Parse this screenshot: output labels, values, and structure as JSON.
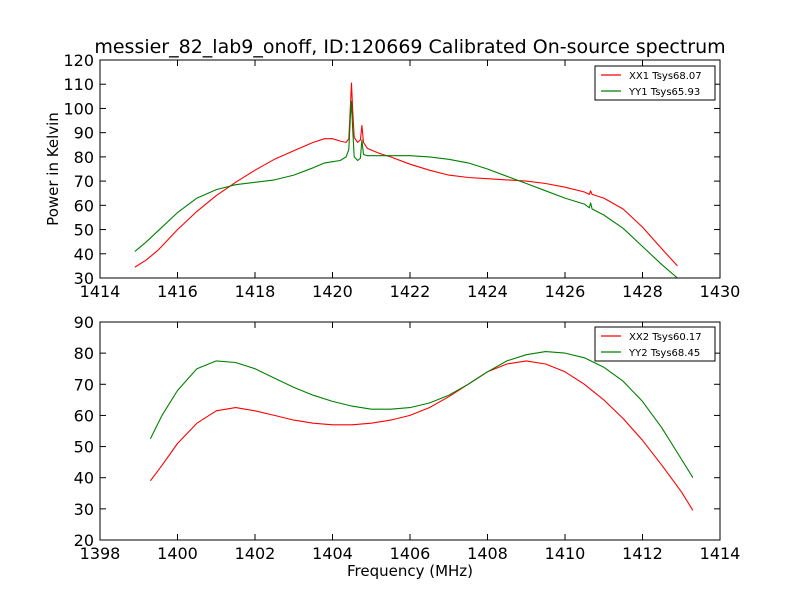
{
  "title": "messier_82_lab9_onoff, ID:120669 Calibrated On-source spectrum",
  "chart_data": [
    {
      "type": "line",
      "ylabel": "Power in Kelvin",
      "xlabel": "",
      "xlim": [
        1414,
        1430
      ],
      "ylim": [
        30,
        120
      ],
      "xticks": [
        1414,
        1416,
        1418,
        1420,
        1422,
        1424,
        1426,
        1428,
        1430
      ],
      "yticks": [
        30,
        40,
        50,
        60,
        70,
        80,
        90,
        100,
        110,
        120
      ],
      "legend_position": "top-right",
      "series": [
        {
          "name": "XX1 Tsys68.07",
          "color": "#ff0000",
          "points": [
            [
              1414.9,
              34.5
            ],
            [
              1415.2,
              37.5
            ],
            [
              1415.5,
              41.5
            ],
            [
              1416.0,
              50.0
            ],
            [
              1416.5,
              57.5
            ],
            [
              1417.0,
              64.0
            ],
            [
              1417.5,
              69.5
            ],
            [
              1418.0,
              74.5
            ],
            [
              1418.5,
              79.0
            ],
            [
              1419.0,
              82.5
            ],
            [
              1419.5,
              86.0
            ],
            [
              1419.8,
              87.5
            ],
            [
              1420.0,
              87.5
            ],
            [
              1420.2,
              86.5
            ],
            [
              1420.35,
              86.0
            ],
            [
              1420.42,
              87.5
            ],
            [
              1420.46,
              100.0
            ],
            [
              1420.49,
              110.5
            ],
            [
              1420.52,
              100.0
            ],
            [
              1420.56,
              88.0
            ],
            [
              1420.65,
              86.0
            ],
            [
              1420.72,
              87.0
            ],
            [
              1420.76,
              93.0
            ],
            [
              1420.8,
              86.0
            ],
            [
              1420.9,
              83.5
            ],
            [
              1421.2,
              81.5
            ],
            [
              1421.5,
              80.0
            ],
            [
              1422.0,
              77.0
            ],
            [
              1422.5,
              74.5
            ],
            [
              1423.0,
              72.5
            ],
            [
              1423.5,
              71.5
            ],
            [
              1424.0,
              71.0
            ],
            [
              1424.5,
              70.5
            ],
            [
              1425.0,
              70.0
            ],
            [
              1425.5,
              69.0
            ],
            [
              1426.0,
              67.5
            ],
            [
              1426.5,
              65.5
            ],
            [
              1426.63,
              64.5
            ],
            [
              1426.66,
              66.0
            ],
            [
              1426.7,
              64.5
            ],
            [
              1427.0,
              63.0
            ],
            [
              1427.5,
              58.5
            ],
            [
              1428.0,
              51.0
            ],
            [
              1428.5,
              42.0
            ],
            [
              1428.9,
              35.0
            ]
          ]
        },
        {
          "name": "YY1 Tsys65.93",
          "color": "#008000",
          "points": [
            [
              1414.9,
              41.0
            ],
            [
              1415.2,
              45.0
            ],
            [
              1415.5,
              49.5
            ],
            [
              1416.0,
              57.0
            ],
            [
              1416.5,
              63.0
            ],
            [
              1417.0,
              66.5
            ],
            [
              1417.5,
              68.5
            ],
            [
              1418.0,
              69.5
            ],
            [
              1418.5,
              70.5
            ],
            [
              1419.0,
              72.5
            ],
            [
              1419.5,
              75.5
            ],
            [
              1419.8,
              77.5
            ],
            [
              1420.0,
              78.0
            ],
            [
              1420.2,
              78.5
            ],
            [
              1420.35,
              80.0
            ],
            [
              1420.42,
              83.0
            ],
            [
              1420.46,
              96.0
            ],
            [
              1420.49,
              103.0
            ],
            [
              1420.52,
              92.0
            ],
            [
              1420.56,
              80.0
            ],
            [
              1420.65,
              78.5
            ],
            [
              1420.72,
              79.5
            ],
            [
              1420.76,
              87.0
            ],
            [
              1420.8,
              81.0
            ],
            [
              1420.9,
              80.5
            ],
            [
              1421.2,
              80.5
            ],
            [
              1421.5,
              80.5
            ],
            [
              1422.0,
              80.5
            ],
            [
              1422.5,
              80.0
            ],
            [
              1423.0,
              79.0
            ],
            [
              1423.5,
              77.5
            ],
            [
              1424.0,
              75.0
            ],
            [
              1424.5,
              72.0
            ],
            [
              1425.0,
              69.0
            ],
            [
              1425.5,
              66.0
            ],
            [
              1426.0,
              63.0
            ],
            [
              1426.5,
              60.5
            ],
            [
              1426.63,
              59.0
            ],
            [
              1426.66,
              61.0
            ],
            [
              1426.7,
              58.5
            ],
            [
              1427.0,
              56.0
            ],
            [
              1427.5,
              50.5
            ],
            [
              1428.0,
              43.0
            ],
            [
              1428.5,
              35.5
            ],
            [
              1428.9,
              30.0
            ]
          ]
        }
      ]
    },
    {
      "type": "line",
      "ylabel": "",
      "xlabel": "Frequency (MHz)",
      "xlim": [
        1398,
        1414
      ],
      "ylim": [
        20,
        90
      ],
      "xticks": [
        1398,
        1400,
        1402,
        1404,
        1406,
        1408,
        1410,
        1412,
        1414
      ],
      "yticks": [
        20,
        30,
        40,
        50,
        60,
        70,
        80,
        90
      ],
      "legend_position": "top-right",
      "series": [
        {
          "name": "XX2 Tsys60.17",
          "color": "#ff0000",
          "points": [
            [
              1399.3,
              39.0
            ],
            [
              1399.6,
              44.0
            ],
            [
              1400.0,
              51.0
            ],
            [
              1400.5,
              57.5
            ],
            [
              1401.0,
              61.5
            ],
            [
              1401.5,
              62.5
            ],
            [
              1402.0,
              61.5
            ],
            [
              1402.5,
              60.0
            ],
            [
              1403.0,
              58.5
            ],
            [
              1403.5,
              57.5
            ],
            [
              1404.0,
              57.0
            ],
            [
              1404.5,
              57.0
            ],
            [
              1405.0,
              57.5
            ],
            [
              1405.5,
              58.5
            ],
            [
              1406.0,
              60.0
            ],
            [
              1406.5,
              62.5
            ],
            [
              1407.0,
              66.0
            ],
            [
              1407.5,
              70.0
            ],
            [
              1408.0,
              74.0
            ],
            [
              1408.5,
              76.5
            ],
            [
              1409.0,
              77.5
            ],
            [
              1409.5,
              76.5
            ],
            [
              1410.0,
              74.0
            ],
            [
              1410.5,
              70.0
            ],
            [
              1411.0,
              65.0
            ],
            [
              1411.5,
              59.0
            ],
            [
              1412.0,
              52.0
            ],
            [
              1412.5,
              44.0
            ],
            [
              1413.0,
              35.5
            ],
            [
              1413.3,
              29.5
            ]
          ]
        },
        {
          "name": "YY2 Tsys68.45",
          "color": "#008000",
          "points": [
            [
              1399.3,
              52.5
            ],
            [
              1399.6,
              60.0
            ],
            [
              1400.0,
              68.0
            ],
            [
              1400.5,
              75.0
            ],
            [
              1401.0,
              77.5
            ],
            [
              1401.5,
              77.0
            ],
            [
              1402.0,
              75.0
            ],
            [
              1402.5,
              72.0
            ],
            [
              1403.0,
              69.0
            ],
            [
              1403.5,
              66.5
            ],
            [
              1404.0,
              64.5
            ],
            [
              1404.5,
              63.0
            ],
            [
              1405.0,
              62.0
            ],
            [
              1405.5,
              62.0
            ],
            [
              1406.0,
              62.5
            ],
            [
              1406.5,
              64.0
            ],
            [
              1407.0,
              66.5
            ],
            [
              1407.5,
              70.0
            ],
            [
              1408.0,
              74.0
            ],
            [
              1408.5,
              77.5
            ],
            [
              1409.0,
              79.5
            ],
            [
              1409.5,
              80.5
            ],
            [
              1410.0,
              80.0
            ],
            [
              1410.5,
              78.5
            ],
            [
              1411.0,
              75.5
            ],
            [
              1411.5,
              71.0
            ],
            [
              1412.0,
              64.5
            ],
            [
              1412.5,
              56.0
            ],
            [
              1413.0,
              46.0
            ],
            [
              1413.3,
              40.0
            ]
          ]
        }
      ]
    }
  ]
}
